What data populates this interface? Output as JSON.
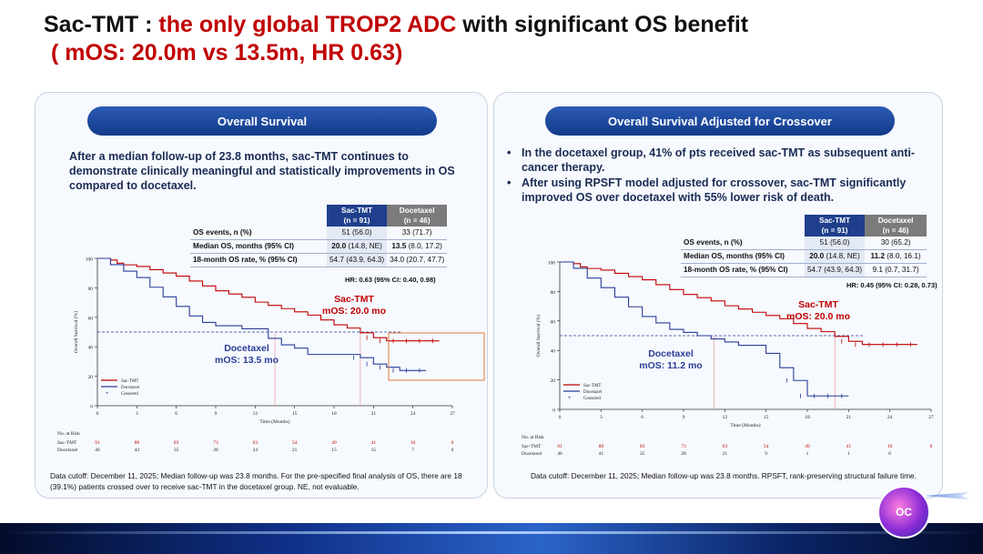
{
  "title": {
    "part1": "Sac-TMT : ",
    "part2": "the only global TROP2 ADC",
    "part3": " with significant OS benefit",
    "subtitle": "( mOS: 20.0m vs 13.5m, HR 0.63)"
  },
  "colors": {
    "sac": "#c00000",
    "doc": "#2b3d9a",
    "pill": "#1a4199",
    "text": "#1a2b54"
  },
  "left": {
    "pill": "Overall Survival",
    "intro": "After a median follow-up of 23.8 months, sac-TMT continues to demonstrate clinically meaningful and statistically improvements in OS compared to docetaxel.",
    "table": {
      "sac_head1": "Sac-TMT",
      "sac_head2": "(n = 91)",
      "doc_head1": "Docetaxel",
      "doc_head2": "(n = 46)",
      "rows": [
        {
          "label": "OS events, n (%)",
          "sac": "51 (56.0)",
          "doc": "33 (71.7)",
          "sac_bold": "",
          "doc_bold": ""
        },
        {
          "label": "Median OS, months (95% CI)",
          "sac": " (14.8, NE)",
          "doc": " (8.0, 17.2)",
          "sac_bold": "20.0",
          "doc_bold": "13.5"
        },
        {
          "label": "18-month OS rate, % (95% CI)",
          "sac": "54.7 (43.9, 64.3)",
          "doc": "34.0 (20.7, 47.7)",
          "sac_bold": "",
          "doc_bold": ""
        }
      ]
    },
    "hr": "HR: 0.63 (95% CI: 0.40, 0.98)",
    "chart_data": {
      "type": "line",
      "title": "Overall Survival",
      "xlabel": "Time (Months)",
      "ylabel": "Overall Survival (%)",
      "xlim": [
        0,
        27
      ],
      "ylim": [
        0,
        100
      ],
      "xticks": [
        0,
        3,
        6,
        9,
        12,
        15,
        18,
        21,
        24,
        27
      ],
      "yticks": [
        0,
        20,
        40,
        60,
        80,
        100
      ],
      "reference_line_y": 50,
      "medians": [
        13.5,
        20.0
      ],
      "series": [
        {
          "name": "Sac-TMT",
          "label1": "Sac-TMT",
          "label2": "mOS: 20.0 mo",
          "x": [
            0,
            1,
            1.5,
            2,
            3,
            4,
            5,
            6,
            7,
            8,
            9,
            10,
            11,
            12,
            13,
            14,
            15,
            16,
            17,
            18,
            19,
            20,
            21,
            22,
            23,
            24,
            25,
            26
          ],
          "y": [
            100,
            98.9,
            96.7,
            95.6,
            94.5,
            92.3,
            90.1,
            87.9,
            84.6,
            81.3,
            78,
            75.8,
            73.6,
            70.3,
            68.1,
            65.9,
            63.7,
            61.5,
            58.2,
            54.9,
            52.7,
            49.5,
            46.2,
            44,
            44,
            44,
            44,
            44
          ]
        },
        {
          "name": "Docetaxel",
          "label1": "Docetaxel",
          "label2": "mOS: 13.5 mo",
          "x": [
            0,
            1,
            2,
            3,
            4,
            5,
            6,
            7,
            8,
            9,
            10,
            11,
            12,
            13,
            14,
            15,
            16,
            17,
            18,
            19,
            20,
            21,
            22,
            23,
            24,
            25
          ],
          "y": [
            100,
            95.7,
            91.3,
            87,
            80.4,
            73.9,
            67.4,
            60.9,
            56.5,
            54.3,
            54.3,
            52.2,
            52.2,
            45.7,
            41.3,
            39.1,
            34.8,
            34.8,
            34.8,
            34.8,
            32.6,
            28.3,
            26.1,
            23.9,
            23.9,
            23.9
          ]
        }
      ],
      "legend": {
        "sac": "Sac-TMT",
        "doc": "Docetaxel",
        "cens": "Censored"
      },
      "risk": {
        "title": "No. at Risk",
        "rows": [
          {
            "name": "Sac-TMT",
            "values": [
              "91",
              "88",
              "83",
              "73",
              "63",
              "54",
              "49",
              "41",
              "16",
              "0"
            ]
          },
          {
            "name": "Docetaxel",
            "values": [
              "46",
              "42",
              "35",
              "28",
              "24",
              "21",
              "15",
              "15",
              "7",
              "0"
            ]
          }
        ]
      }
    },
    "footnote": "Data cutoff: December 11, 2025; Median follow-up was 23.8 months. For the pre-specified final analysis of OS, there are 18 (39.1%) patients crossed over to receive sac-TMT in the docetaxel group. NE, not evaluable."
  },
  "right": {
    "pill": "Overall Survival Adjusted for Crossover",
    "bullets": [
      "In the docetaxel group, 41%  of pts received sac-TMT as subsequent anti-cancer therapy.",
      "After using RPSFT model adjusted for crossover, sac-TMT significantly improved OS over docetaxel with 55% lower risk of death."
    ],
    "table": {
      "sac_head1": "Sac-TMT",
      "sac_head2": "(n = 91)",
      "doc_head1": "Docetaxel",
      "doc_head2": "(n = 46)",
      "rows": [
        {
          "label": "OS events, n (%)",
          "sac": "51 (56.0)",
          "doc": "30 (65.2)",
          "sac_bold": "",
          "doc_bold": ""
        },
        {
          "label": "Median OS, months (95% CI)",
          "sac": " (14.8, NE)",
          "doc": " (8.0, 16.1)",
          "sac_bold": "20.0",
          "doc_bold": "11.2"
        },
        {
          "label": "18-month OS rate, % (95% CI)",
          "sac": "54.7 (43.9, 64.3)",
          "doc": "9.1 (0.7, 31.7)",
          "sac_bold": "",
          "doc_bold": ""
        }
      ]
    },
    "hr": "HR: 0.45 (95% CI: 0.28, 0.73)",
    "chart_data": {
      "type": "line",
      "title": "Overall Survival Adjusted for Crossover",
      "xlabel": "Time (Months)",
      "ylabel": "Overall Survival (%)",
      "xlim": [
        0,
        27
      ],
      "ylim": [
        0,
        100
      ],
      "xticks": [
        0,
        3,
        6,
        9,
        12,
        15,
        18,
        21,
        24,
        27
      ],
      "yticks": [
        0,
        20,
        40,
        60,
        80,
        100
      ],
      "reference_line_y": 50,
      "medians": [
        11.2,
        20.0
      ],
      "series": [
        {
          "name": "Sac-TMT",
          "label1": "Sac-TMT",
          "label2": "mOS: 20.0 mo",
          "x": [
            0,
            1,
            1.5,
            2,
            3,
            4,
            5,
            6,
            7,
            8,
            9,
            10,
            11,
            12,
            13,
            14,
            15,
            16,
            17,
            18,
            19,
            20,
            21,
            22,
            23,
            24,
            25,
            26
          ],
          "y": [
            100,
            98.9,
            96.7,
            95.6,
            94.5,
            92.3,
            90.1,
            87.9,
            84.6,
            81.3,
            78,
            75.8,
            73.6,
            70.3,
            68.1,
            65.9,
            63.7,
            61.5,
            58.2,
            54.9,
            52.7,
            49.5,
            46.2,
            44,
            44,
            44,
            44,
            44
          ]
        },
        {
          "name": "Docetaxel",
          "label1": "Docetaxel",
          "label2": "mOS: 11.2 mo",
          "x": [
            0,
            1,
            2,
            3,
            4,
            5,
            6,
            7,
            8,
            9,
            10,
            11,
            12,
            13,
            14,
            15,
            16,
            17,
            18,
            19,
            20,
            21
          ],
          "y": [
            100,
            95.7,
            89.1,
            82.6,
            76.1,
            69.6,
            63,
            58.7,
            54.3,
            52.2,
            50,
            47.8,
            45.7,
            43.5,
            43.5,
            38,
            28.3,
            19.6,
            9.1,
            9.1,
            9.1,
            9.1
          ]
        }
      ],
      "legend": {
        "sac": "Sac-TMT",
        "doc": "Docetaxel",
        "cens": "Censored"
      },
      "risk": {
        "title": "No. at Risk",
        "rows": [
          {
            "name": "Sac-TMT",
            "values": [
              "91",
              "88",
              "83",
              "73",
              "63",
              "54",
              "49",
              "41",
              "16",
              "0"
            ]
          },
          {
            "name": "Docetaxel",
            "values": [
              "46",
              "41",
              "35",
              "28",
              "21",
              "9",
              "1",
              "1",
              "0",
              ""
            ]
          }
        ]
      }
    },
    "footnote": "Data cutoff: December 11, 2025; Median follow-up was 23.8 months. RPSFT, rank-preserving structural failure time."
  },
  "logo": {
    "text": "OC"
  }
}
